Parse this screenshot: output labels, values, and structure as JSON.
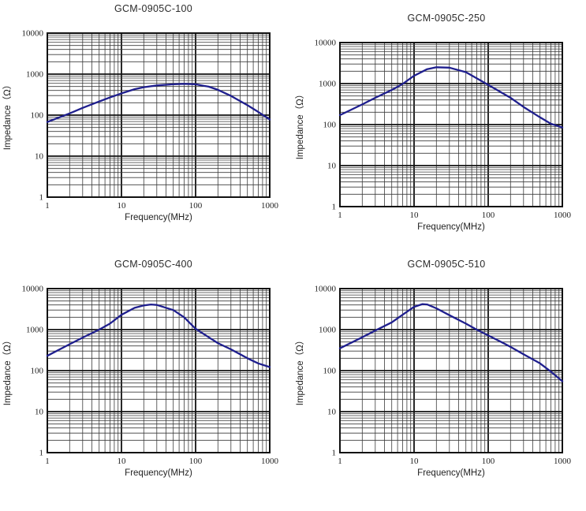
{
  "page": {
    "background": "#ffffff"
  },
  "chart_data": [
    {
      "type": "line",
      "title": "GCM-0905C-100",
      "xlabel": "Frequency(MHz)",
      "ylabel": "Impedance（Ω）",
      "x_scale": "log",
      "y_scale": "log",
      "xlim": [
        1,
        1000
      ],
      "ylim": [
        1,
        10000
      ],
      "x_ticks": [
        1,
        10,
        100,
        1000
      ],
      "y_ticks": [
        1,
        10,
        100,
        1000,
        10000
      ],
      "grid": "log major+minor, both axes",
      "legend": "none",
      "line_color": "#1f1f8e",
      "series": [
        {
          "name": "impedance",
          "x": [
            1,
            2,
            3,
            5,
            7,
            10,
            15,
            20,
            30,
            50,
            70,
            100,
            150,
            200,
            300,
            500,
            700,
            1000
          ],
          "y": [
            68,
            110,
            150,
            215,
            270,
            340,
            430,
            480,
            530,
            565,
            580,
            565,
            495,
            415,
            295,
            175,
            120,
            78
          ]
        }
      ]
    },
    {
      "type": "line",
      "title": "GCM-0905C-250",
      "xlabel": "Frequency(MHz)",
      "ylabel": "Impedance（Ω）",
      "x_scale": "log",
      "y_scale": "log",
      "xlim": [
        1,
        1000
      ],
      "ylim": [
        1,
        10000
      ],
      "x_ticks": [
        1,
        10,
        100,
        1000
      ],
      "y_ticks": [
        1,
        10,
        100,
        1000,
        10000
      ],
      "grid": "log major+minor, both axes",
      "legend": "none",
      "line_color": "#1f1f8e",
      "series": [
        {
          "name": "impedance",
          "x": [
            1,
            2,
            3,
            5,
            7,
            10,
            15,
            20,
            30,
            50,
            70,
            100,
            150,
            200,
            300,
            500,
            700,
            1000
          ],
          "y": [
            170,
            310,
            450,
            700,
            980,
            1550,
            2250,
            2500,
            2450,
            1900,
            1350,
            930,
            610,
            450,
            270,
            150,
            105,
            85
          ]
        }
      ]
    },
    {
      "type": "line",
      "title": "GCM-0905C-400",
      "xlabel": "Frequency(MHz)",
      "ylabel": "Impedance（Ω）",
      "x_scale": "log",
      "y_scale": "log",
      "xlim": [
        1,
        1000
      ],
      "ylim": [
        1,
        10000
      ],
      "x_ticks": [
        1,
        10,
        100,
        1000
      ],
      "y_ticks": [
        1,
        10,
        100,
        1000,
        10000
      ],
      "grid": "log major+minor, both axes",
      "legend": "none",
      "line_color": "#1f1f8e",
      "series": [
        {
          "name": "impedance",
          "x": [
            1,
            2,
            3,
            5,
            7,
            10,
            15,
            20,
            25,
            30,
            50,
            70,
            100,
            150,
            200,
            300,
            400,
            500,
            700,
            1000
          ],
          "y": [
            230,
            440,
            640,
            1000,
            1400,
            2300,
            3400,
            3900,
            4100,
            4000,
            3000,
            2000,
            1050,
            650,
            470,
            330,
            250,
            200,
            150,
            122
          ]
        }
      ]
    },
    {
      "type": "line",
      "title": "GCM-0905C-510",
      "xlabel": "Frequency(MHz)",
      "ylabel": "Impedance（Ω）",
      "x_scale": "log",
      "y_scale": "log",
      "xlim": [
        1,
        1000
      ],
      "ylim": [
        1,
        10000
      ],
      "x_ticks": [
        1,
        10,
        100,
        1000
      ],
      "y_ticks": [
        1,
        10,
        100,
        1000,
        10000
      ],
      "grid": "log major+minor, both axes",
      "legend": "none",
      "line_color": "#1f1f8e",
      "series": [
        {
          "name": "impedance",
          "x": [
            1,
            2,
            3,
            5,
            7,
            10,
            13,
            15,
            20,
            30,
            50,
            70,
            100,
            150,
            200,
            300,
            500,
            700,
            1000
          ],
          "y": [
            350,
            650,
            950,
            1500,
            2300,
            3600,
            4200,
            4100,
            3300,
            2250,
            1400,
            1000,
            720,
            500,
            380,
            250,
            150,
            95,
            55
          ]
        }
      ]
    }
  ]
}
